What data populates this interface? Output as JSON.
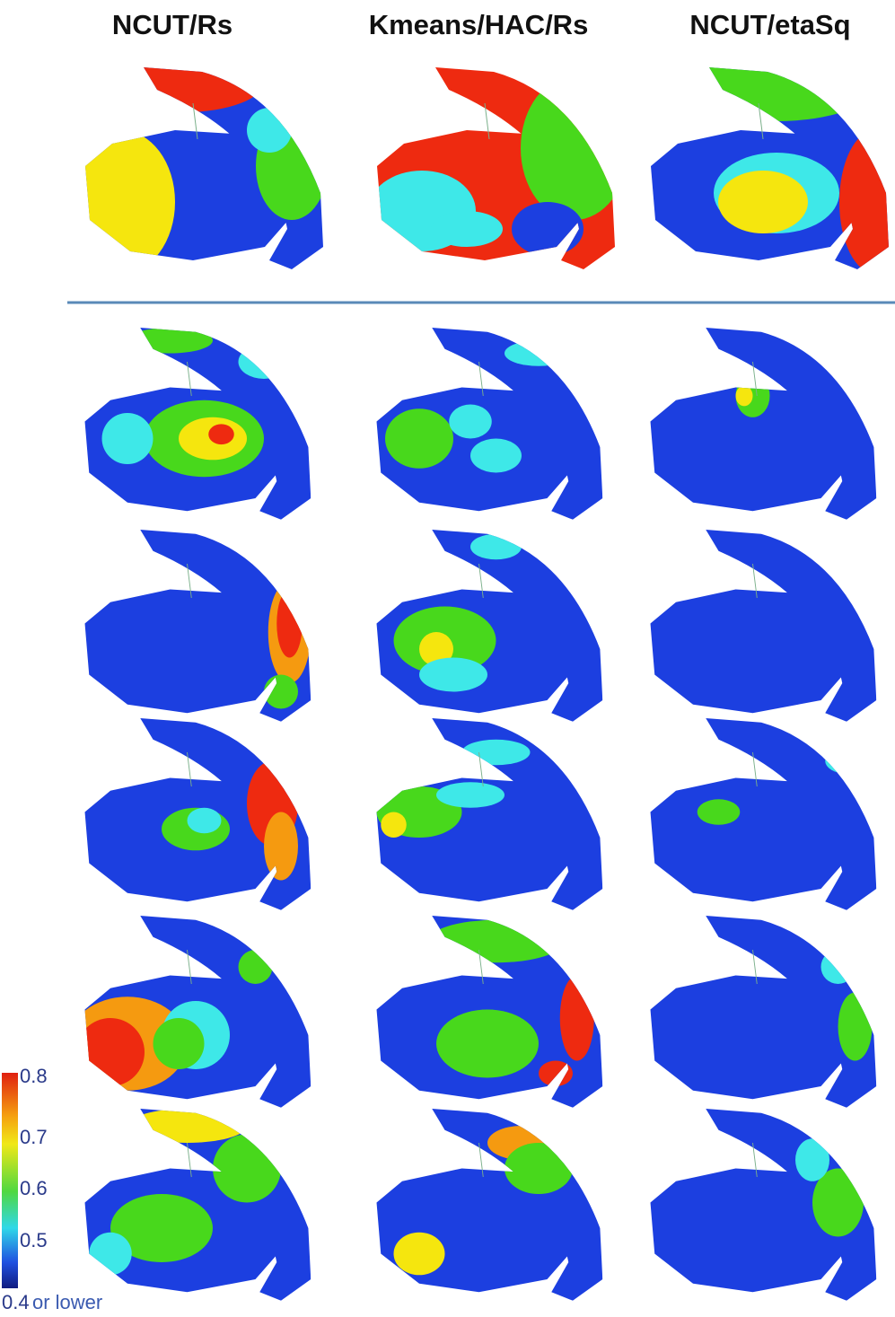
{
  "columns": [
    "NCUT/Rs",
    "Kmeans/HAC/Rs",
    "NCUT/etaSq"
  ],
  "colorbar": {
    "labels": [
      "0.8",
      "0.7",
      "0.6",
      "0.5",
      "0.4"
    ],
    "note": "or lower"
  }
}
